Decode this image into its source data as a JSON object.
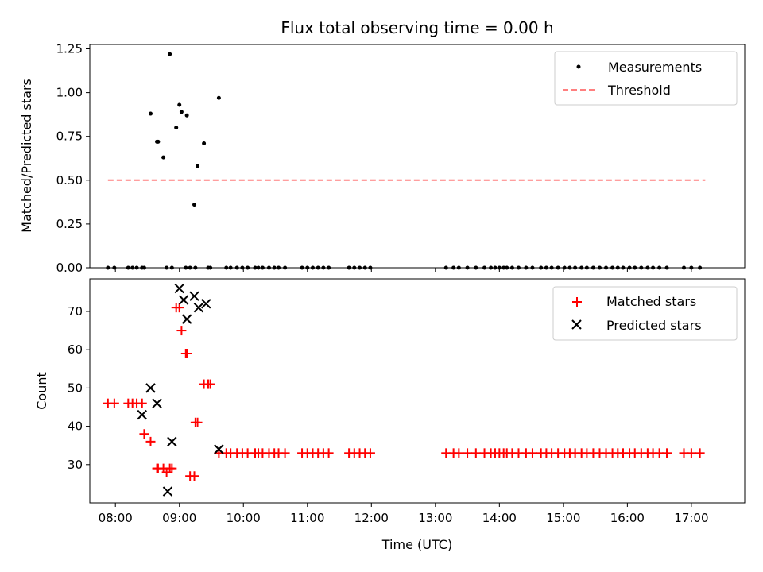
{
  "chart_data": [
    {
      "type": "scatter",
      "title": "Flux total observing time = 0.00 h",
      "xlabel": "",
      "ylabel": "Matched/Predicted stars",
      "xlim": [
        "07:36",
        "17:50"
      ],
      "ylim": [
        0,
        1.275
      ],
      "yticks": [
        "0.00",
        "0.25",
        "0.50",
        "0.75",
        "1.00",
        "1.25"
      ],
      "series": [
        {
          "name": "Measurements",
          "kind": "scatter",
          "color": "#000000",
          "x": [
            "07:53",
            "07:59",
            "08:12",
            "08:16",
            "08:20",
            "08:25",
            "08:27",
            "08:33",
            "08:39",
            "08:40",
            "08:45",
            "08:48",
            "08:51",
            "08:53",
            "08:57",
            "09:00",
            "09:02",
            "09:06",
            "09:07",
            "09:10",
            "09:14",
            "09:15",
            "09:17",
            "09:23",
            "09:27",
            "09:29",
            "09:37",
            "09:44",
            "09:48",
            "09:54",
            "09:59",
            "10:04",
            "10:11",
            "10:14",
            "10:18",
            "10:24",
            "10:29",
            "10:33",
            "10:39",
            "10:55",
            "11:00",
            "11:05",
            "11:10",
            "11:15",
            "11:20",
            "11:39",
            "11:44",
            "11:49",
            "11:54",
            "11:59",
            "13:10",
            "13:17",
            "13:22",
            "13:30",
            "13:38",
            "13:46",
            "13:52",
            "13:56",
            "14:00",
            "14:04",
            "14:07",
            "14:12",
            "14:18",
            "14:25",
            "14:31",
            "14:39",
            "14:44",
            "14:49",
            "14:55",
            "15:01",
            "15:06",
            "15:11",
            "15:17",
            "15:22",
            "15:28",
            "15:34",
            "15:40",
            "15:46",
            "15:51",
            "15:56",
            "16:02",
            "16:07",
            "16:13",
            "16:19",
            "16:24",
            "16:30",
            "16:37",
            "16:53",
            "17:00",
            "17:08"
          ],
          "y": [
            0,
            0,
            0,
            0,
            0,
            0,
            0,
            0.88,
            0.72,
            0.72,
            0.63,
            0,
            1.22,
            0,
            0.8,
            0.93,
            0.89,
            0,
            0.87,
            0,
            0.36,
            0,
            0.58,
            0.71,
            0,
            0,
            0.97,
            0,
            0,
            0,
            0,
            0,
            0,
            0,
            0,
            0,
            0,
            0,
            0,
            0,
            0,
            0,
            0,
            0,
            0,
            0,
            0,
            0,
            0,
            0,
            0,
            0,
            0,
            0,
            0,
            0,
            0,
            0,
            0,
            0,
            0,
            0,
            0,
            0,
            0,
            0,
            0,
            0,
            0,
            0,
            0,
            0,
            0,
            0,
            0,
            0,
            0,
            0,
            0,
            0,
            0,
            0,
            0,
            0,
            0,
            0,
            0,
            0,
            0,
            0
          ]
        },
        {
          "name": "Threshold",
          "kind": "dashed-line",
          "color": "#ff7f7f",
          "x": [
            "07:53",
            "17:13"
          ],
          "y": [
            0.5,
            0.5
          ]
        }
      ],
      "legend": "top-right"
    },
    {
      "type": "scatter",
      "title": "",
      "xlabel": "Time (UTC)",
      "ylabel": "Count",
      "xlim": [
        "07:36",
        "17:50"
      ],
      "ylim": [
        20,
        78.5
      ],
      "yticks": [
        "30",
        "40",
        "50",
        "60",
        "70"
      ],
      "xticks": [
        "08:00",
        "09:00",
        "10:00",
        "11:00",
        "12:00",
        "13:00",
        "14:00",
        "15:00",
        "16:00",
        "17:00"
      ],
      "series": [
        {
          "name": "Matched stars",
          "kind": "plus",
          "color": "#ff0000",
          "x": [
            "07:53",
            "07:59",
            "08:12",
            "08:16",
            "08:20",
            "08:25",
            "08:27",
            "08:33",
            "08:39",
            "08:40",
            "08:45",
            "08:48",
            "08:51",
            "08:53",
            "08:57",
            "09:00",
            "09:02",
            "09:06",
            "09:07",
            "09:10",
            "09:14",
            "09:15",
            "09:17",
            "09:23",
            "09:27",
            "09:29",
            "09:37",
            "09:44",
            "09:48",
            "09:54",
            "09:59",
            "10:04",
            "10:11",
            "10:14",
            "10:18",
            "10:24",
            "10:29",
            "10:33",
            "10:39",
            "10:55",
            "11:00",
            "11:05",
            "11:10",
            "11:15",
            "11:20",
            "11:39",
            "11:44",
            "11:49",
            "11:54",
            "11:59",
            "13:10",
            "13:17",
            "13:22",
            "13:30",
            "13:38",
            "13:46",
            "13:52",
            "13:56",
            "14:00",
            "14:04",
            "14:07",
            "14:12",
            "14:18",
            "14:25",
            "14:31",
            "14:39",
            "14:44",
            "14:49",
            "14:55",
            "15:01",
            "15:06",
            "15:11",
            "15:17",
            "15:22",
            "15:28",
            "15:34",
            "15:40",
            "15:46",
            "15:51",
            "15:56",
            "16:02",
            "16:07",
            "16:13",
            "16:19",
            "16:24",
            "16:30",
            "16:37",
            "16:53",
            "17:00",
            "17:08"
          ],
          "y": [
            46,
            46,
            46,
            46,
            46,
            46,
            38,
            36,
            29,
            29,
            29,
            28,
            29,
            29,
            71,
            71,
            65,
            59,
            59,
            27,
            27,
            41,
            41,
            51,
            51,
            51,
            33,
            33,
            33,
            33,
            33,
            33,
            33,
            33,
            33,
            33,
            33,
            33,
            33,
            33,
            33,
            33,
            33,
            33,
            33,
            33,
            33,
            33,
            33,
            33,
            33,
            33,
            33,
            33,
            33,
            33,
            33,
            33,
            33,
            33,
            33,
            33,
            33,
            33,
            33,
            33,
            33,
            33,
            33,
            33,
            33,
            33,
            33,
            33,
            33,
            33,
            33,
            33,
            33,
            33,
            33,
            33,
            33,
            33,
            33,
            33,
            33,
            33,
            33,
            33
          ]
        },
        {
          "name": "Predicted stars",
          "kind": "x",
          "color": "#000000",
          "x": [
            "08:25",
            "08:33",
            "08:39",
            "08:49",
            "08:53",
            "09:00",
            "09:04",
            "09:07",
            "09:14",
            "09:18",
            "09:25",
            "09:37"
          ],
          "y": [
            43,
            50,
            46,
            23,
            36,
            76,
            73,
            68,
            74,
            71,
            72,
            34
          ]
        }
      ],
      "legend": "top-right"
    }
  ]
}
